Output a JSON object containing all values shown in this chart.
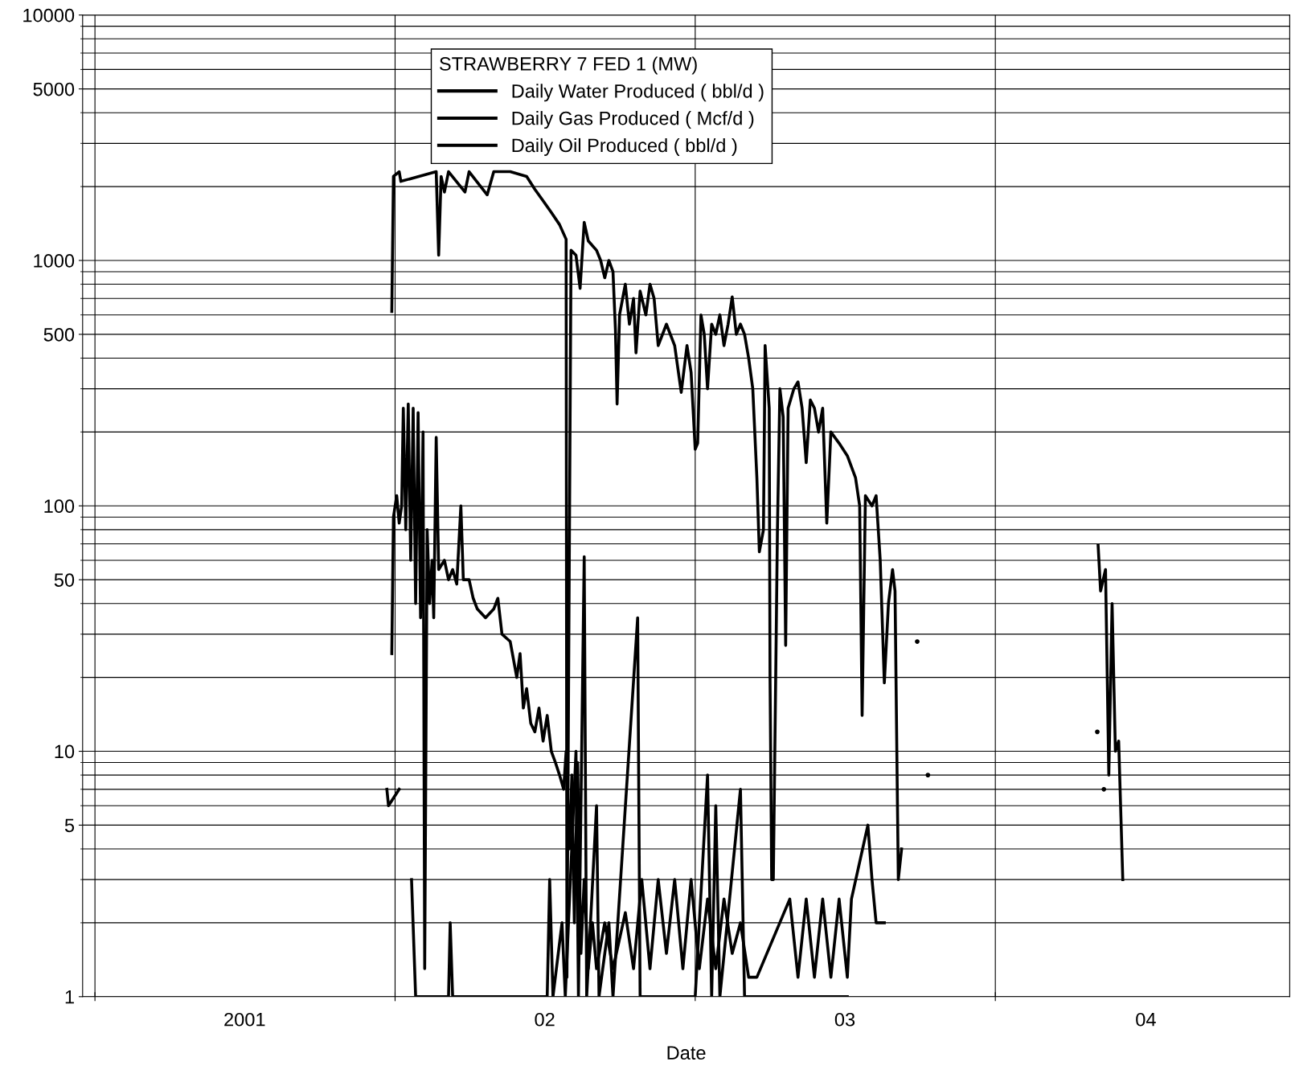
{
  "chart_data": {
    "type": "line",
    "xlabel": "Date",
    "legend_title": "STRAWBERRY 7 FED 1 (MW)",
    "legend": "top",
    "grid": true,
    "log": "y",
    "line_style": "solid",
    "marker": "none",
    "xlim": [
      "2000-12-17",
      "2004-12-24"
    ],
    "xticks": [
      {
        "value": "2001-01-01",
        "label": null
      },
      {
        "value": "2001-07-02",
        "label": "2001"
      },
      {
        "value": "2002-01-01",
        "label": null
      },
      {
        "value": "2002-07-02",
        "label": "02"
      },
      {
        "value": "2003-01-01",
        "label": null
      },
      {
        "value": "2003-07-02",
        "label": "03"
      },
      {
        "value": "2004-01-01",
        "label": null
      },
      {
        "value": "2004-07-02",
        "label": "04"
      }
    ],
    "ylim": [
      1,
      10000
    ],
    "yticks": [
      1,
      5,
      10,
      50,
      100,
      500,
      1000,
      5000,
      10000
    ],
    "series": [
      {
        "name": "Daily Water Produced ( bbl/d )",
        "color": "#000000",
        "x": [
          "2001-12-22",
          "2001-12-24",
          "2002-01-06",
          "2002-01-11",
          "2002-01-21",
          "2002-01-26",
          "2002-03-07",
          "2002-03-09",
          "2002-03-12",
          "2002-07-05",
          "2002-07-08",
          "2002-07-12",
          "2002-07-23",
          "2002-07-27",
          "2002-08-09",
          "2002-08-12",
          "2002-08-19",
          "2002-08-22",
          "2002-09-03",
          "2002-09-06",
          "2002-09-18",
          "2002-09-23",
          "2002-10-23",
          "2002-10-26",
          "2003-01-01",
          "2003-01-16",
          "2003-01-21",
          "2003-01-26",
          "2003-01-31",
          "2003-02-25",
          "2003-03-02",
          "2003-07-05"
        ],
        "values": [
          7,
          6,
          7,
          null,
          3,
          1,
          1,
          2,
          1,
          1,
          3,
          1,
          2,
          1,
          10,
          1,
          62,
          1,
          6,
          1,
          2,
          1,
          35,
          1,
          1,
          8,
          1,
          6,
          1,
          7,
          1,
          1
        ]
      },
      {
        "name": "Daily Gas Produced ( Mcf/d )",
        "color": "#000000",
        "x": [
          "2001-12-28",
          "2001-12-30",
          "2002-01-06",
          "2002-01-08",
          "2002-02-20",
          "2002-02-23",
          "2002-02-26",
          "2002-03-02",
          "2002-03-07",
          "2002-03-27",
          "2002-04-01",
          "2002-04-23",
          "2002-05-01",
          "2002-05-21",
          "2002-06-10",
          "2002-06-20",
          "2002-06-30",
          "2002-07-10",
          "2002-07-20",
          "2002-07-28",
          "2002-07-29",
          "2002-08-03",
          "2002-08-09",
          "2002-08-14",
          "2002-08-19",
          "2002-08-24",
          "2002-09-03",
          "2002-09-08",
          "2002-09-13",
          "2002-09-18",
          "2002-09-23",
          "2002-09-26",
          "2002-09-28",
          "2002-10-01",
          "2002-10-08",
          "2002-10-13",
          "2002-10-18",
          "2002-10-21",
          "2002-10-26",
          "2002-11-02",
          "2002-11-07",
          "2002-11-12",
          "2002-11-17",
          "2002-11-27",
          "2002-12-07",
          "2002-12-15",
          "2002-12-22",
          "2002-12-27",
          "2003-01-01",
          "2003-01-04",
          "2003-01-08",
          "2003-01-12",
          "2003-01-16",
          "2003-01-21",
          "2003-01-26",
          "2003-01-31",
          "2003-02-05",
          "2003-02-10",
          "2003-02-15",
          "2003-02-20",
          "2003-02-25",
          "2003-03-02",
          "2003-03-07",
          "2003-03-12",
          "2003-03-17",
          "2003-03-20",
          "2003-03-25",
          "2003-03-27",
          "2003-04-01",
          "2003-04-02",
          "2003-04-04",
          "2003-04-06",
          "2003-04-11",
          "2003-04-14",
          "2003-04-18",
          "2003-04-21",
          "2003-04-24",
          "2003-05-01",
          "2003-05-06",
          "2003-05-11",
          "2003-05-16",
          "2003-05-21",
          "2003-05-26",
          "2003-05-31",
          "2003-06-05",
          "2003-06-10",
          "2003-06-15",
          "2003-06-25",
          "2003-07-05",
          "2003-07-15",
          "2003-07-20",
          "2003-07-23",
          "2003-07-27",
          "2003-08-04",
          "2003-08-09",
          "2003-08-14",
          "2003-08-19",
          "2003-08-24",
          "2003-08-29",
          "2003-09-01",
          "2003-09-05",
          "2003-09-09",
          "2003-12-22",
          "2004-05-05",
          "2004-05-08",
          "2004-05-14",
          "2004-05-18",
          "2004-05-22",
          "2004-05-26",
          "2004-05-30",
          "2004-06-04"
        ],
        "values": [
          620,
          2200,
          2300,
          2100,
          2300,
          1050,
          2200,
          1900,
          2300,
          1900,
          2300,
          1850,
          2300,
          2300,
          2200,
          1950,
          1750,
          1570,
          1400,
          1220,
          1.2,
          1100,
          1050,
          770,
          1430,
          1200,
          1100,
          1000,
          850,
          1000,
          900,
          520,
          260,
          600,
          800,
          550,
          700,
          420,
          750,
          600,
          800,
          700,
          450,
          550,
          450,
          290,
          450,
          350,
          170,
          180,
          600,
          500,
          300,
          550,
          500,
          600,
          450,
          550,
          710,
          500,
          550,
          500,
          400,
          300,
          130,
          65,
          80,
          450,
          250,
          20,
          3,
          3,
          80,
          300,
          230,
          27,
          250,
          300,
          320,
          250,
          150,
          270,
          250,
          200,
          250,
          85,
          200,
          180,
          160,
          130,
          100,
          14,
          110,
          100,
          110,
          60,
          19,
          40,
          55,
          45,
          3,
          4,
          null,
          69,
          45,
          55,
          8,
          40,
          10,
          11,
          3
        ]
      },
      {
        "name": "Daily Oil Produced ( bbl/d )",
        "color": "#000000",
        "x": [
          "2001-12-28",
          "2001-12-30",
          "2002-01-03",
          "2002-01-06",
          "2002-01-09",
          "2002-01-11",
          "2002-01-14",
          "2002-01-17",
          "2002-01-20",
          "2002-01-23",
          "2002-01-26",
          "2002-01-29",
          "2002-02-01",
          "2002-02-04",
          "2002-02-06",
          "2002-02-09",
          "2002-02-12",
          "2002-02-15",
          "2002-02-17",
          "2002-02-20",
          "2002-02-23",
          "2002-03-02",
          "2002-03-07",
          "2002-03-12",
          "2002-03-17",
          "2002-03-22",
          "2002-03-25",
          "2002-04-01",
          "2002-04-06",
          "2002-04-11",
          "2002-04-21",
          "2002-05-01",
          "2002-05-06",
          "2002-05-11",
          "2002-05-21",
          "2002-05-29",
          "2002-06-02",
          "2002-06-06",
          "2002-06-10",
          "2002-06-15",
          "2002-06-20",
          "2002-06-25",
          "2002-06-30",
          "2002-07-05",
          "2002-07-10",
          "2002-07-15",
          "2002-07-20",
          "2002-07-25",
          "2002-07-28",
          "2002-08-01",
          "2002-08-04",
          "2002-08-07",
          "2002-08-11",
          "2002-08-15",
          "2002-08-19",
          "2002-08-24",
          "2002-08-29",
          "2002-09-03",
          "2002-09-13",
          "2002-09-23",
          "2002-10-08",
          "2002-10-18",
          "2002-10-28",
          "2002-11-07",
          "2002-11-17",
          "2002-11-27",
          "2002-12-07",
          "2002-12-17",
          "2002-12-27",
          "2003-01-06",
          "2003-01-16",
          "2003-01-26",
          "2003-02-05",
          "2003-02-15",
          "2003-02-25",
          "2003-03-07",
          "2003-03-17",
          "2003-04-26",
          "2003-05-06",
          "2003-05-16",
          "2003-05-26",
          "2003-06-05",
          "2003-06-15",
          "2003-06-25",
          "2003-07-05",
          "2003-07-10",
          "2003-07-30",
          "2003-08-04",
          "2003-08-09",
          "2003-08-19"
        ],
        "values": [
          25,
          90,
          110,
          85,
          100,
          250,
          80,
          260,
          60,
          250,
          40,
          240,
          35,
          200,
          1.3,
          80,
          40,
          60,
          35,
          190,
          55,
          60,
          50,
          55,
          48,
          100,
          50,
          50,
          42,
          38,
          35,
          38,
          42,
          30,
          28,
          20,
          25,
          15,
          18,
          13,
          12,
          15,
          11,
          14,
          10,
          9,
          8,
          7,
          10,
          4,
          8,
          2,
          9,
          1.5,
          3,
          1.3,
          2,
          1.3,
          2,
          1.3,
          2.2,
          1.3,
          3,
          1.3,
          3,
          1.5,
          3,
          1.3,
          3,
          1.3,
          2.5,
          1.3,
          2.5,
          1.5,
          2,
          1.2,
          1.2,
          2.5,
          1.2,
          2.5,
          1.2,
          2.5,
          1.2,
          2.5,
          1.2,
          2.5,
          5,
          3,
          2,
          2
        ]
      },
      {
        "type": "scatter",
        "color": "#000000",
        "x": [
          "2003-09-28",
          "2003-10-11",
          "2004-05-04",
          "2004-05-12"
        ],
        "values": [
          28,
          8,
          12,
          7
        ]
      }
    ]
  }
}
